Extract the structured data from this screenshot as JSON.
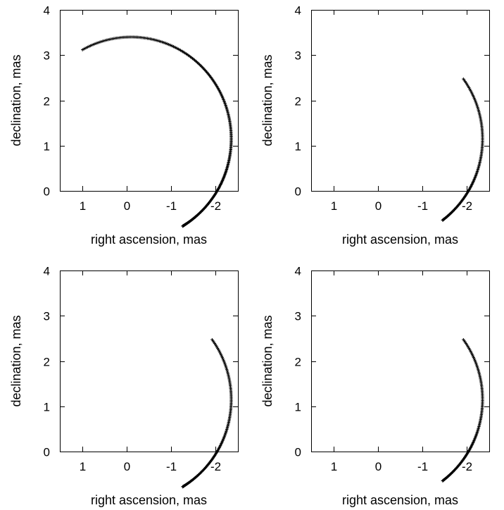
{
  "chart_data": [
    {
      "type": "scatter",
      "panel": "top-left",
      "xlabel": "right ascension, mas",
      "ylabel": "declination, mas",
      "xlim": [
        1.5,
        -2.5
      ],
      "ylim": [
        0,
        4
      ],
      "xticks": [
        1,
        0,
        -1,
        -2
      ],
      "yticks": [
        0,
        1,
        2,
        3,
        4
      ],
      "grid": false,
      "marker": "plus",
      "arc": {
        "center": [
          -0.1,
          1.15
        ],
        "radius": 2.25,
        "start_deg": -59,
        "end_deg": 119
      },
      "points_summary": "dense arc from (-1.0, 0.15) through (-2.0, 1.7) and (0.2, 3.4) to (1.0, 2.9)"
    },
    {
      "type": "scatter",
      "panel": "top-right",
      "xlabel": "right ascension, mas",
      "ylabel": "declination, mas",
      "xlim": [
        1.5,
        -2.5
      ],
      "ylim": [
        0,
        4
      ],
      "xticks": [
        1,
        0,
        -1,
        -2
      ],
      "yticks": [
        0,
        1,
        2,
        3,
        4
      ],
      "grid": false,
      "marker": "plus",
      "arc": {
        "center": [
          -0.1,
          1.15
        ],
        "radius": 2.25,
        "start_deg": -53,
        "end_deg": 36
      },
      "points_summary": "arc from (-1.35, 0.38) through (-2.0, 1.6) to (-1.85, 2.45)"
    },
    {
      "type": "scatter",
      "panel": "bottom-left",
      "xlabel": "right ascension, mas",
      "ylabel": "declination, mas",
      "xlim": [
        1.5,
        -2.5
      ],
      "ylim": [
        0,
        4
      ],
      "xticks": [
        1,
        0,
        -1,
        -2
      ],
      "yticks": [
        0,
        1,
        2,
        3,
        4
      ],
      "grid": false,
      "marker": "plus",
      "arc": {
        "center": [
          -0.1,
          1.15
        ],
        "radius": 2.25,
        "start_deg": -59,
        "end_deg": 36
      },
      "points_summary": "arc from (-1.0, 0.15) through (-2.0, 1.6) to (-1.85, 2.45)"
    },
    {
      "type": "scatter",
      "panel": "bottom-right",
      "xlabel": "right ascension, mas",
      "ylabel": "declination, mas",
      "xlim": [
        1.5,
        -2.5
      ],
      "ylim": [
        0,
        4
      ],
      "xticks": [
        1,
        0,
        -1,
        -2
      ],
      "yticks": [
        0,
        1,
        2,
        3,
        4
      ],
      "grid": false,
      "marker": "plus",
      "arc": {
        "center": [
          -0.1,
          1.15
        ],
        "radius": 2.25,
        "start_deg": -53,
        "end_deg": 36
      },
      "points_summary": "arc from (-1.35, 0.38) through (-2.0, 1.6) to (-1.85, 2.45)"
    }
  ]
}
